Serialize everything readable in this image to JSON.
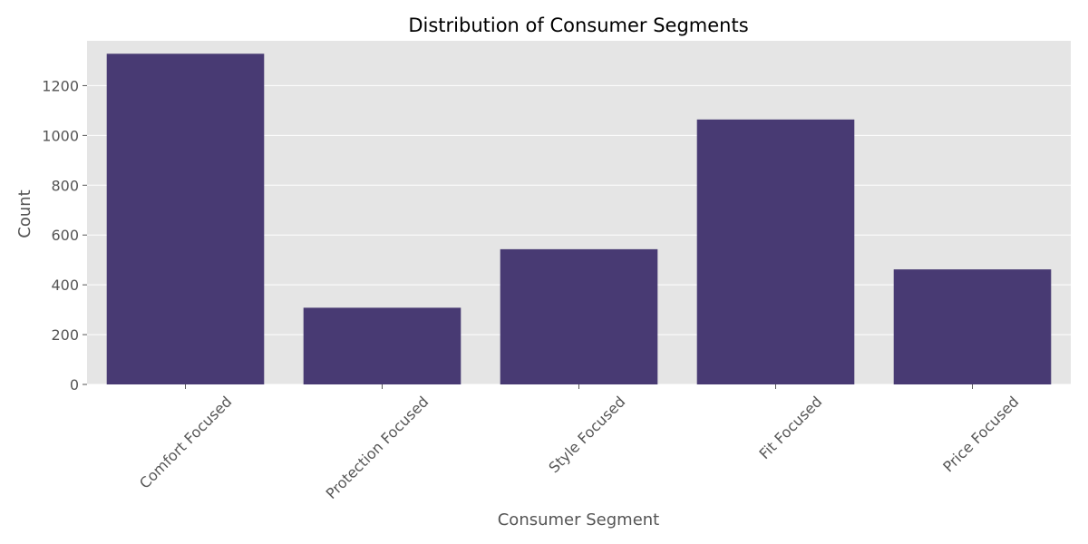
{
  "chart_data": {
    "type": "bar",
    "title": "Distribution of Consumer Segments",
    "xlabel": "Consumer Segment",
    "ylabel": "Count",
    "categories": [
      "Comfort Focused",
      "Protection Focused",
      "Style Focused",
      "Fit Focused",
      "Price Focused"
    ],
    "values": [
      1328,
      308,
      543,
      1064,
      462
    ],
    "ylim": [
      0,
      1380
    ],
    "yticks": [
      0,
      200,
      400,
      600,
      800,
      1000,
      1200
    ],
    "grid": true,
    "legend": "none",
    "colors": {
      "bar": "#483a73",
      "plot_background": "#e5e5e5",
      "gridline": "#ffffff",
      "text": "#555555"
    }
  }
}
